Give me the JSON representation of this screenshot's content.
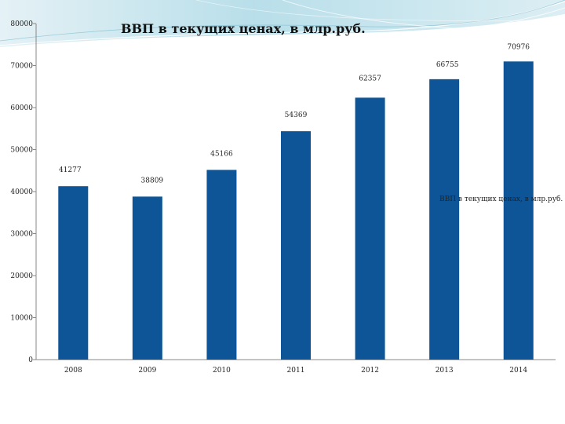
{
  "chart_data": {
    "type": "bar",
    "title": "ВВП в текущих ценах, в млр.руб.",
    "legend": "ВВП в текущих ценах, в млр.руб.",
    "categories": [
      "2008",
      "2009",
      "2010",
      "2011",
      "2012",
      "2013",
      "2014"
    ],
    "series": [
      {
        "name": "ВВП в текущих ценах, в млр.руб.",
        "values": [
          41277,
          38809,
          45166,
          54369,
          62357,
          66755,
          70976
        ]
      }
    ],
    "value_labels": [
      "41277",
      "38809",
      "45166",
      "54369",
      "62357",
      "66755",
      "70976"
    ],
    "y_ticks": [
      0,
      10000,
      20000,
      30000,
      40000,
      50000,
      60000,
      70000,
      80000
    ],
    "ylim": [
      0,
      80000
    ],
    "grid": false,
    "legend_position": "right",
    "xlabel": "",
    "ylabel": "",
    "bar_color": "#0d5596"
  }
}
